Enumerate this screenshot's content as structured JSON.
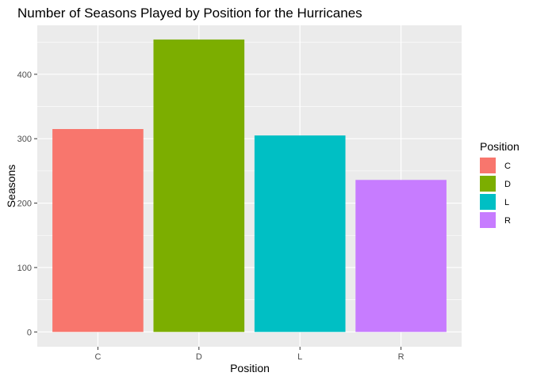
{
  "chart_data": {
    "type": "bar",
    "title": "Number of Seasons Played by Position for the Hurricanes",
    "xlabel": "Position",
    "ylabel": "Seasons",
    "categories": [
      "C",
      "D",
      "L",
      "R"
    ],
    "values": [
      315,
      454,
      305,
      236
    ],
    "colors": [
      "#F8766D",
      "#7CAE00",
      "#00BFC4",
      "#C77CFF"
    ],
    "ylim": [
      -23,
      476
    ],
    "yticks": [
      0,
      100,
      200,
      300,
      400
    ],
    "grid": true,
    "panel_background": "#EBEBEB",
    "legend": {
      "title": "Position",
      "position": "right",
      "entries": [
        "C",
        "D",
        "L",
        "R"
      ]
    }
  }
}
